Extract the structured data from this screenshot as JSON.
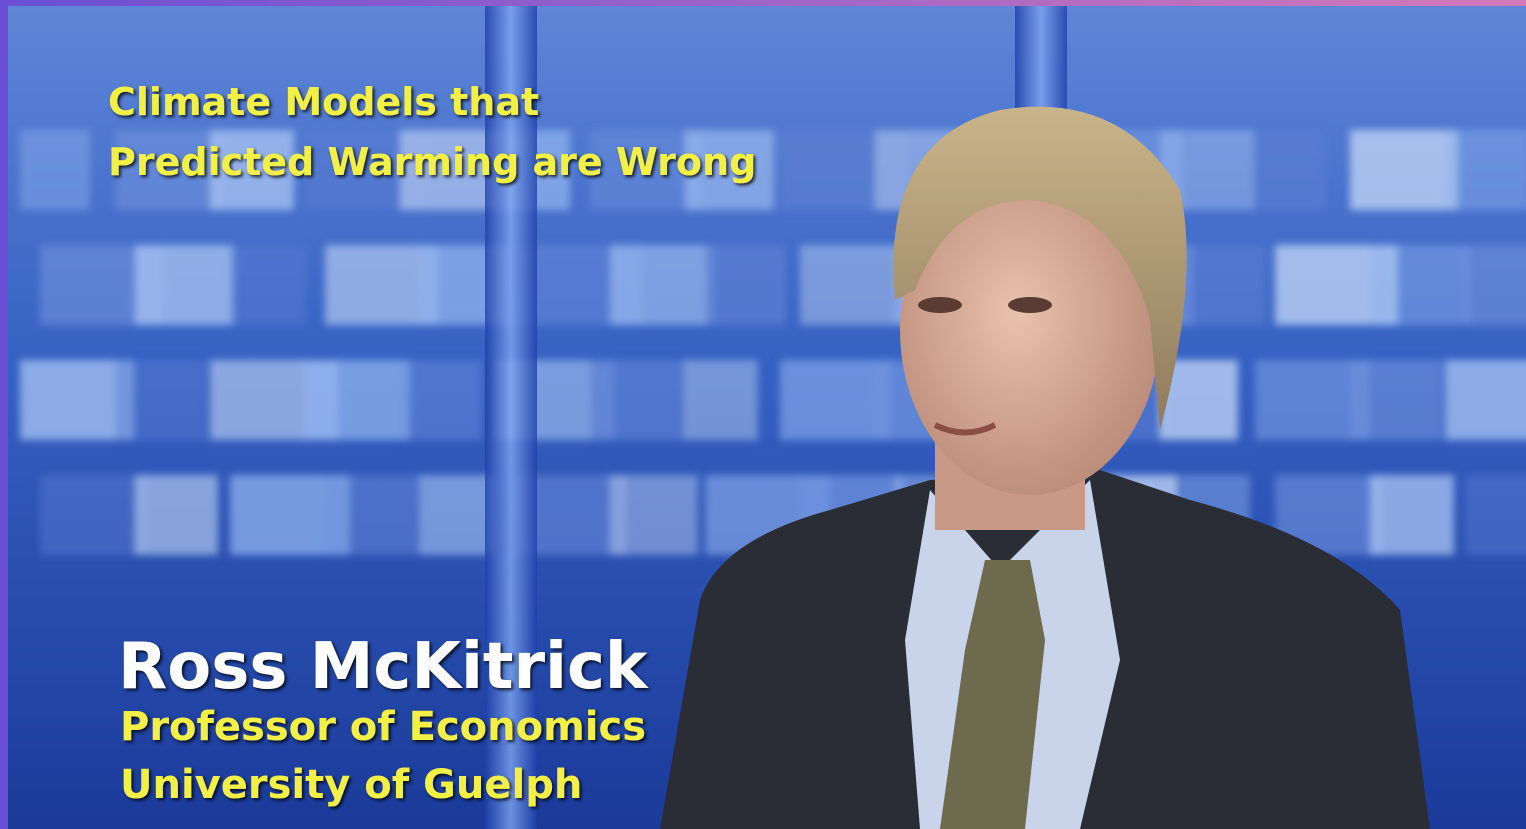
{
  "caption": {
    "headline": [
      "Climate Models that",
      "Predicted Warming are Wrong"
    ]
  },
  "lower_third": {
    "name": "Ross McKitrick",
    "details": [
      "Professor of Economics",
      "University of Guelph"
    ]
  }
}
